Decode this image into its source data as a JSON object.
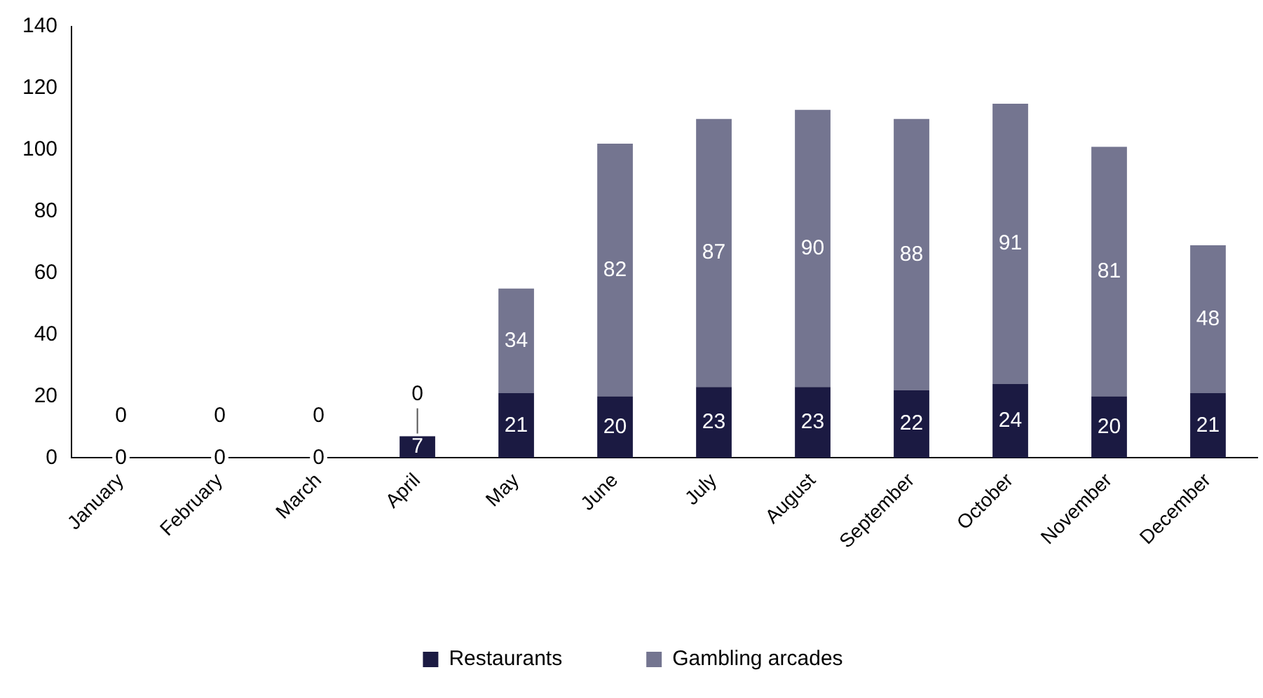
{
  "chart_data": {
    "type": "bar",
    "stacked": true,
    "categories": [
      "January",
      "February",
      "March",
      "April",
      "May",
      "June",
      "July",
      "August",
      "September",
      "October",
      "November",
      "December"
    ],
    "series": [
      {
        "name": "Restaurants",
        "color": "#1b1a42",
        "values": [
          0,
          0,
          0,
          7,
          21,
          20,
          23,
          23,
          22,
          24,
          20,
          21
        ]
      },
      {
        "name": "Gambling arcades",
        "color": "#747590",
        "values": [
          0,
          0,
          0,
          0,
          34,
          82,
          87,
          90,
          88,
          91,
          81,
          48
        ]
      }
    ],
    "ylim": [
      0,
      140
    ],
    "yticks": [
      0,
      20,
      40,
      60,
      80,
      100,
      120,
      140
    ],
    "grid": false,
    "legend": "bottom",
    "data_labels": true
  }
}
